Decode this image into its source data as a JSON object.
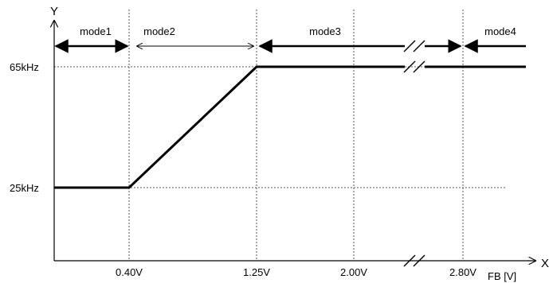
{
  "chart_data": {
    "type": "line",
    "x_axis_letter": "X",
    "y_axis_letter": "Y",
    "xlabel": "FB [V]",
    "x_ticks": [
      {
        "value": 0.4,
        "label": "0.40V"
      },
      {
        "value": 1.25,
        "label": "1.25V"
      },
      {
        "value": 2.0,
        "label": "2.00V"
      },
      {
        "value": 2.8,
        "label": "2.80V"
      }
    ],
    "y_ticks": [
      {
        "value": 25,
        "label": "25kHz"
      },
      {
        "value": 65,
        "label": "65kHz"
      }
    ],
    "series": [
      {
        "points": [
          {
            "x": 0.0,
            "y": 25
          },
          {
            "x": 0.4,
            "y": 25
          },
          {
            "x": 1.25,
            "y": 65
          },
          {
            "x": 2.8,
            "y": 65
          },
          {
            "x": 3.6,
            "y": 65
          }
        ]
      }
    ],
    "modes": [
      {
        "label": "mode1",
        "from": 0.0,
        "to": 0.4
      },
      {
        "label": "mode2",
        "from": 0.4,
        "to": 1.25
      },
      {
        "label": "mode3",
        "from": 1.25,
        "to": 2.8
      },
      {
        "label": "mode4",
        "from": 2.8,
        "to": 3.6
      }
    ],
    "axis_break": {
      "x_between": [
        2.0,
        2.8
      ]
    },
    "grid": "dotted lines at tick values",
    "colors": {
      "line": "#000000",
      "grid": "#555555"
    }
  }
}
